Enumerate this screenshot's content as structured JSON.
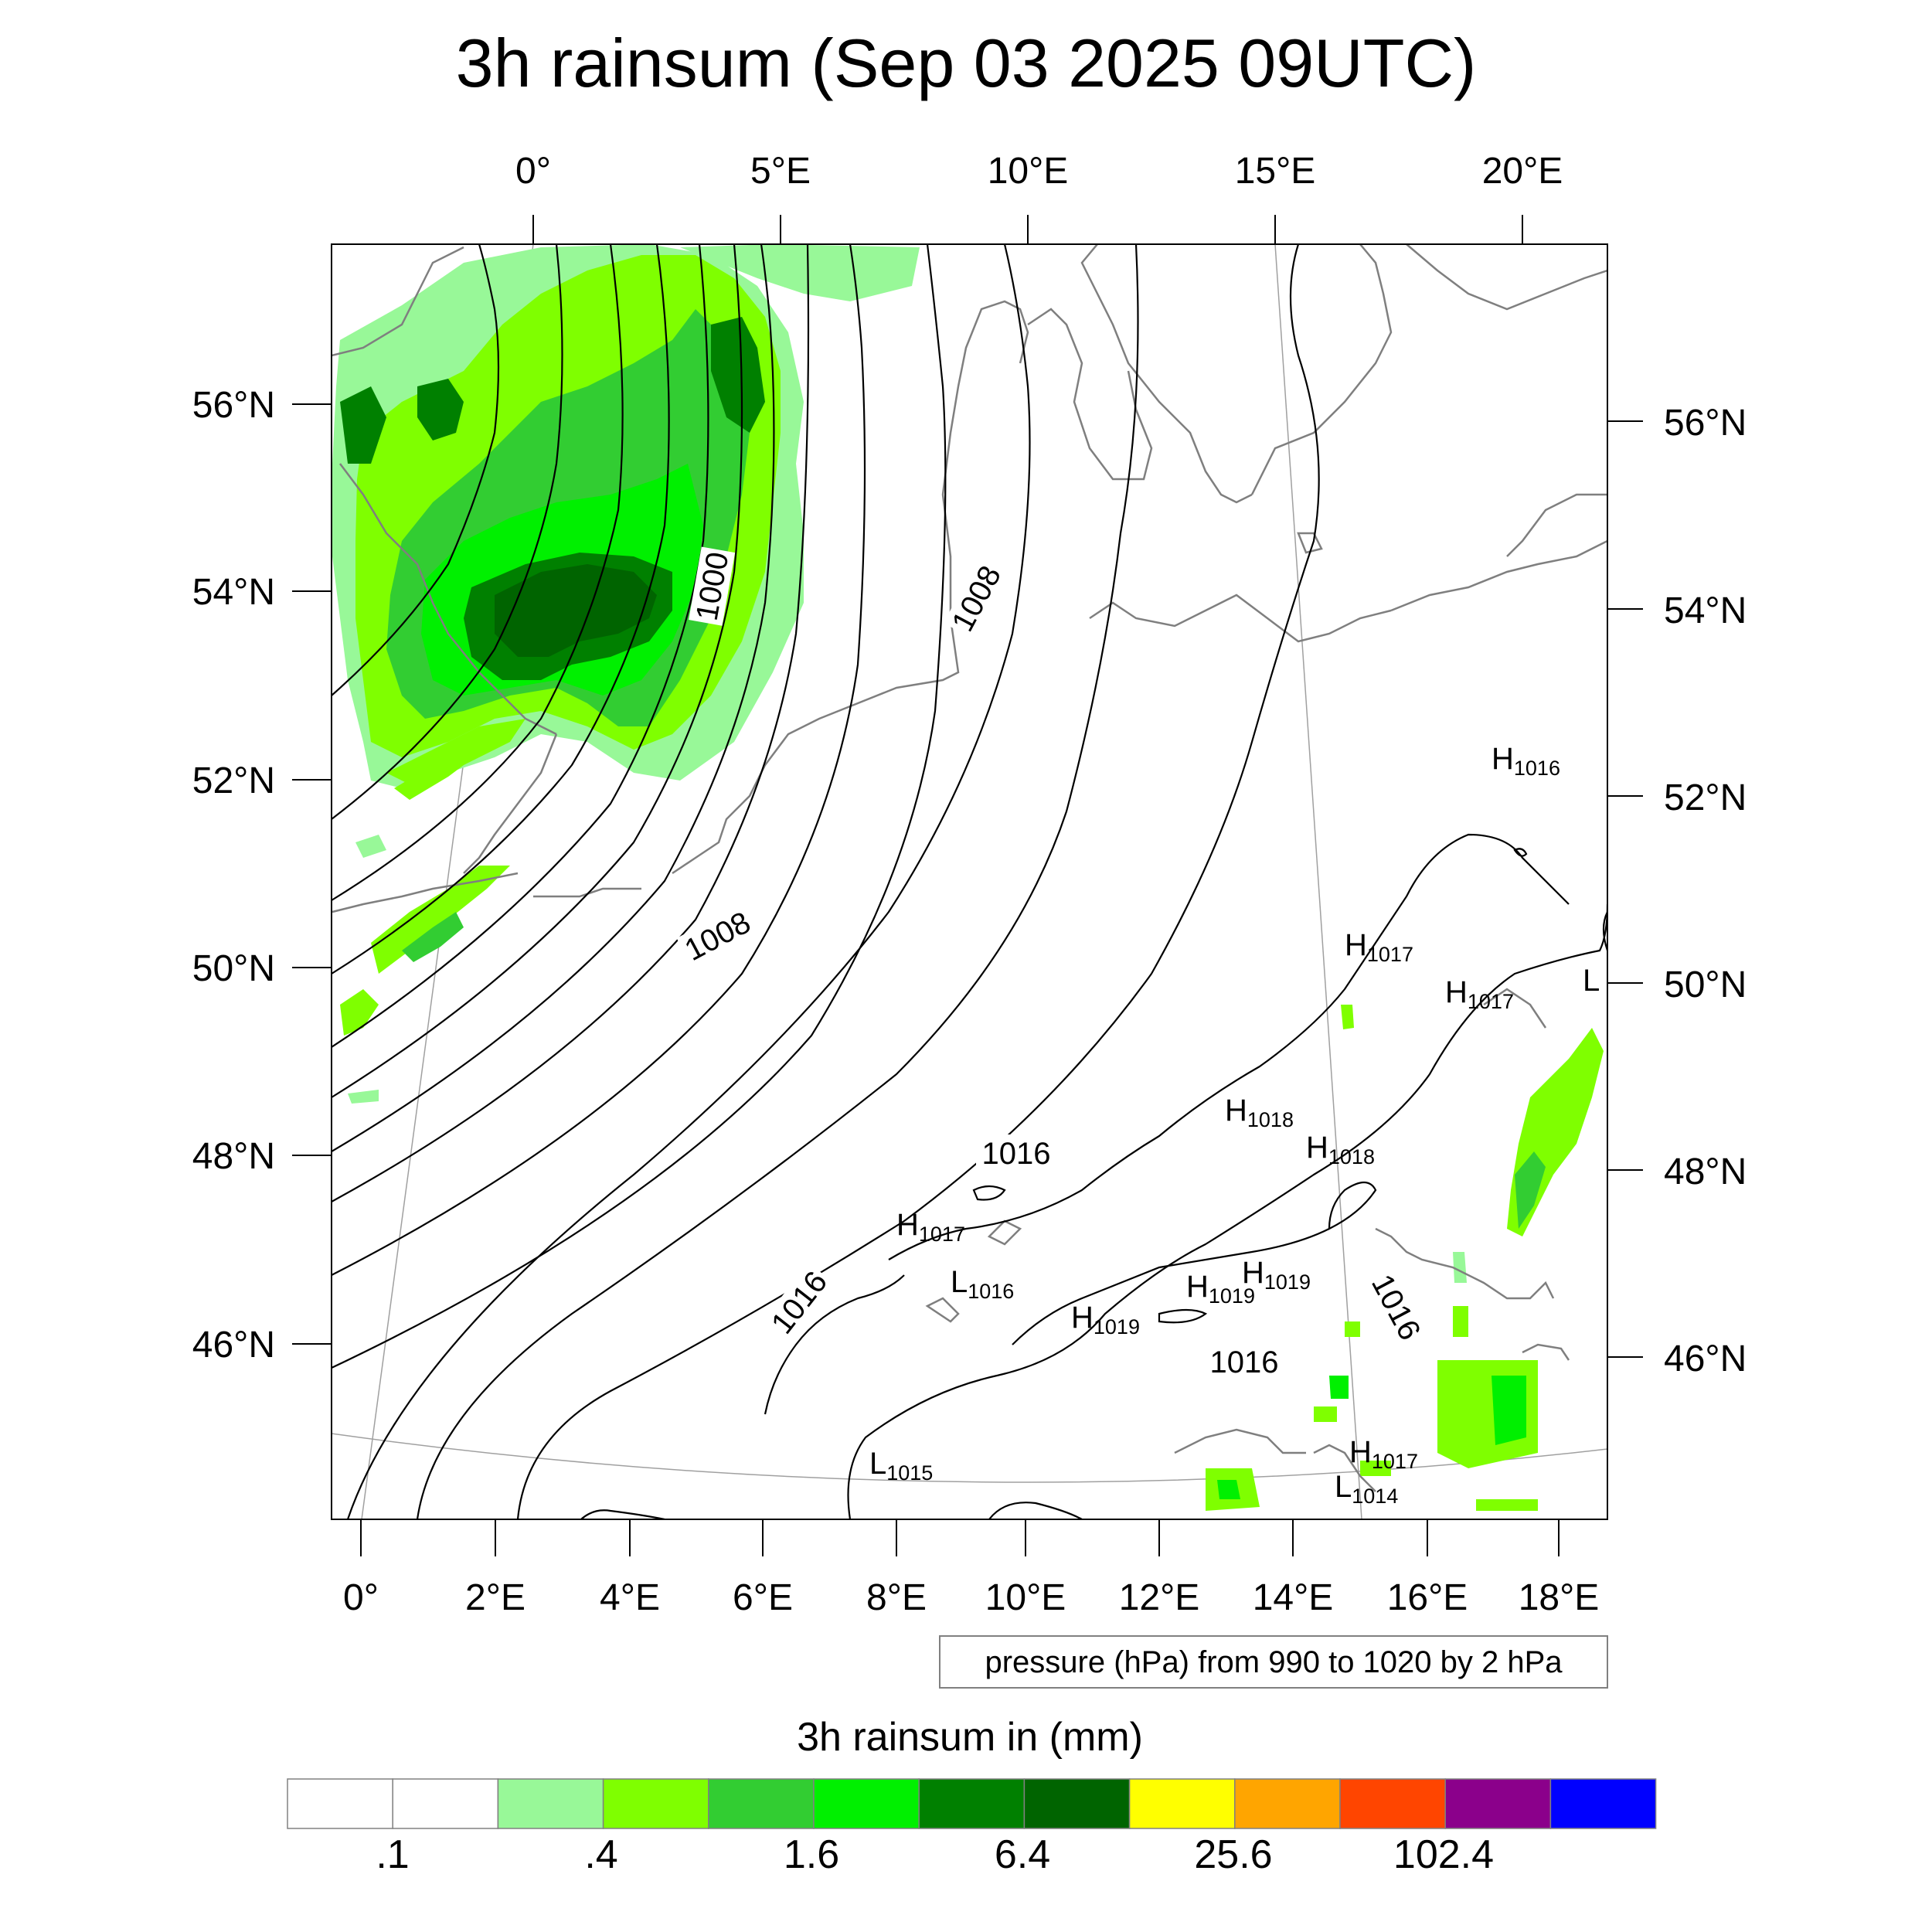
{
  "title": "3h rainsum (Sep 03 2025 09UTC)",
  "top_lon_labels": [
    "0°",
    "5°E",
    "10°E",
    "15°E",
    "20°E"
  ],
  "bottom_lon_labels": [
    "0°",
    "2°E",
    "4°E",
    "6°E",
    "8°E",
    "10°E",
    "12°E",
    "14°E",
    "16°E",
    "18°E"
  ],
  "left_lat_labels": [
    "56°N",
    "54°N",
    "52°N",
    "50°N",
    "48°N",
    "46°N"
  ],
  "right_lat_labels": [
    "56°N",
    "54°N",
    "52°N",
    "50°N",
    "48°N",
    "46°N"
  ],
  "contour_labels": [
    "1000",
    "1008",
    "1008",
    "1016",
    "1016",
    "1016",
    "1016"
  ],
  "pressure_centers": [
    {
      "type": "H",
      "value": "1016"
    },
    {
      "type": "H",
      "value": "1017"
    },
    {
      "type": "H",
      "value": "1017"
    },
    {
      "type": "L",
      "value": ""
    },
    {
      "type": "H",
      "value": "1018"
    },
    {
      "type": "H",
      "value": "1018"
    },
    {
      "type": "H",
      "value": "1017"
    },
    {
      "type": "L",
      "value": "1016"
    },
    {
      "type": "H",
      "value": "1019"
    },
    {
      "type": "H",
      "value": "1019"
    },
    {
      "type": "H",
      "value": "1019"
    },
    {
      "type": "L",
      "value": "1015"
    },
    {
      "type": "H",
      "value": "1017"
    },
    {
      "type": "L",
      "value": "1014"
    }
  ],
  "contour_info": "pressure (hPa) from 990 to 1020 by 2 hPa",
  "colorbar": {
    "title": "3h rainsum in (mm)",
    "colors": [
      "#ffffff",
      "#ffffff",
      "#98f898",
      "#7fff00",
      "#32cd32",
      "#00f000",
      "#008000",
      "#006400",
      "#ffff00",
      "#ffa500",
      "#ff4500",
      "#8b008b",
      "#0000ff"
    ],
    "tick_labels": [
      ".1",
      ".4",
      "1.6",
      "6.4",
      "25.6",
      "102.4"
    ]
  }
}
